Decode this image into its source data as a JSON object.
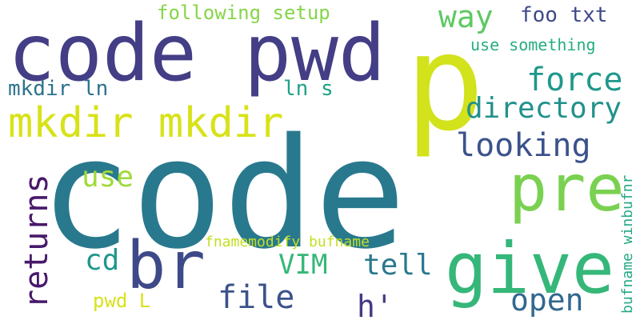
{
  "words": [
    {
      "text": "code",
      "color": "#29798e"
    },
    {
      "text": "p",
      "color": "#d2e21b"
    },
    {
      "text": "code pwd",
      "color": "#433e85"
    },
    {
      "text": "give",
      "color": "#35b779"
    },
    {
      "text": "pre",
      "color": "#7ad151"
    },
    {
      "text": "br",
      "color": "#3e4989"
    },
    {
      "text": "mkdir mkdir",
      "color": "#d8e219"
    },
    {
      "text": "returns",
      "color": "#48196b"
    },
    {
      "text": "force",
      "color": "#1f988b"
    },
    {
      "text": "directory",
      "color": "#21918c"
    },
    {
      "text": "looking",
      "color": "#3b528b"
    },
    {
      "text": "way",
      "color": "#5ec962"
    },
    {
      "text": "foo txt",
      "color": "#3e4989"
    },
    {
      "text": "use",
      "color": "#a0da39"
    },
    {
      "text": "file",
      "color": "#3b528b"
    },
    {
      "text": "tell",
      "color": "#2a788e"
    },
    {
      "text": "VIM",
      "color": "#35b779"
    },
    {
      "text": "open",
      "color": "#31688e"
    },
    {
      "text": "cd",
      "color": "#1f988b"
    },
    {
      "text": "h'",
      "color": "#443a83"
    },
    {
      "text": "mkdir ln",
      "color": "#2c728e"
    },
    {
      "text": "ln s",
      "color": "#1fa188"
    },
    {
      "text": "following setup",
      "color": "#86d549"
    },
    {
      "text": "use something",
      "color": "#26ad81"
    },
    {
      "text": "pwd L",
      "color": "#d8e219"
    },
    {
      "text": "fnamemodify bufname",
      "color": "#c2df23"
    },
    {
      "text": "bufname winbufnr",
      "color": "#22a884"
    }
  ]
}
